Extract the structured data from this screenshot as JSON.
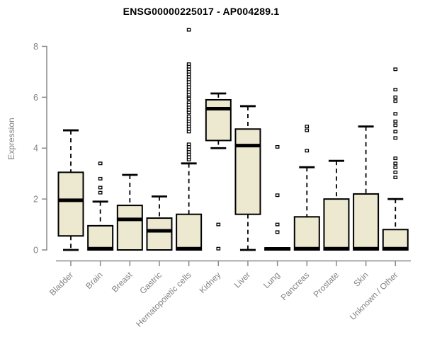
{
  "chart_data": {
    "type": "boxplot",
    "title": "ENSG00000225017 - AP004289.1",
    "ylabel": "Expression",
    "xlabel": "",
    "ylim": [
      0,
      8
    ],
    "yticks": [
      0,
      2,
      4,
      6,
      8
    ],
    "grid": false,
    "legend": "none",
    "categories": [
      "Bladder",
      "Brain",
      "Breast",
      "Gastric",
      "Hematopoietic cells",
      "Kidney",
      "Liver",
      "Lung",
      "Pancreas",
      "Prostate",
      "Skin",
      "Unknown / Other"
    ],
    "boxes": [
      {
        "label": "Bladder",
        "low": 0,
        "q1": 0.55,
        "median": 1.95,
        "q3": 3.05,
        "high": 4.7,
        "outliers": []
      },
      {
        "label": "Brain",
        "low": 0,
        "q1": 0,
        "median": 0.05,
        "q3": 0.95,
        "high": 1.9,
        "outliers": [
          3.4,
          2.8,
          2.45,
          2.25
        ]
      },
      {
        "label": "Breast",
        "low": 0,
        "q1": 0,
        "median": 1.2,
        "q3": 1.75,
        "high": 2.95,
        "outliers": []
      },
      {
        "label": "Gastric",
        "low": 0,
        "q1": 0,
        "median": 0.75,
        "q3": 1.25,
        "high": 2.1,
        "outliers": []
      },
      {
        "label": "Hematopoietic cells",
        "low": 0,
        "q1": 0,
        "median": 0.05,
        "q3": 1.4,
        "high": 3.4,
        "outliers": [
          8.65,
          7.3,
          7.2,
          7.1,
          7.0,
          6.9,
          6.8,
          6.7,
          6.6,
          6.5,
          6.4,
          6.3,
          6.2,
          6.1,
          6.0,
          5.95,
          5.8,
          5.7,
          5.6,
          5.5,
          5.4,
          5.25,
          5.15,
          5.05,
          4.95,
          4.85,
          4.75,
          4.65,
          4.15,
          4.05,
          3.95,
          3.85,
          3.75,
          3.65,
          3.55
        ]
      },
      {
        "label": "Kidney",
        "low": 4.0,
        "q1": 4.3,
        "median": 5.55,
        "q3": 5.9,
        "high": 6.15,
        "outliers": [
          1.0,
          0.05
        ]
      },
      {
        "label": "Liver",
        "low": 0,
        "q1": 1.4,
        "median": 4.1,
        "q3": 4.75,
        "high": 5.65,
        "outliers": []
      },
      {
        "label": "Lung",
        "low": 0,
        "q1": 0,
        "median": 0.04,
        "q3": 0.08,
        "high": 0.08,
        "outliers": [
          4.05,
          2.15,
          1.0,
          0.7
        ]
      },
      {
        "label": "Pancreas",
        "low": 0,
        "q1": 0,
        "median": 0.05,
        "q3": 1.3,
        "high": 3.25,
        "outliers": [
          4.85,
          4.7,
          3.9
        ]
      },
      {
        "label": "Prostate",
        "low": 0,
        "q1": 0,
        "median": 0.05,
        "q3": 2.0,
        "high": 3.5,
        "outliers": []
      },
      {
        "label": "Skin",
        "low": 0,
        "q1": 0,
        "median": 0.05,
        "q3": 2.2,
        "high": 4.85,
        "outliers": []
      },
      {
        "label": "Unknown / Other",
        "low": 0,
        "q1": 0,
        "median": 0.05,
        "q3": 0.8,
        "high": 2.0,
        "outliers": [
          7.1,
          6.3,
          6.0,
          5.85,
          5.35,
          5.05,
          4.9,
          4.65,
          4.4,
          3.6,
          3.4,
          3.25,
          3.05,
          2.85
        ]
      }
    ]
  },
  "colors": {
    "box_fill": "#EDE8D0",
    "box_border": "#000000",
    "median": "#000000",
    "whisker": "#000000",
    "outlier_stroke": "#000000",
    "outlier_fill": "#ffffff",
    "axis": "#8a8a8a",
    "tick_label": "#828282",
    "title": "#000000",
    "background": "#ffffff"
  }
}
